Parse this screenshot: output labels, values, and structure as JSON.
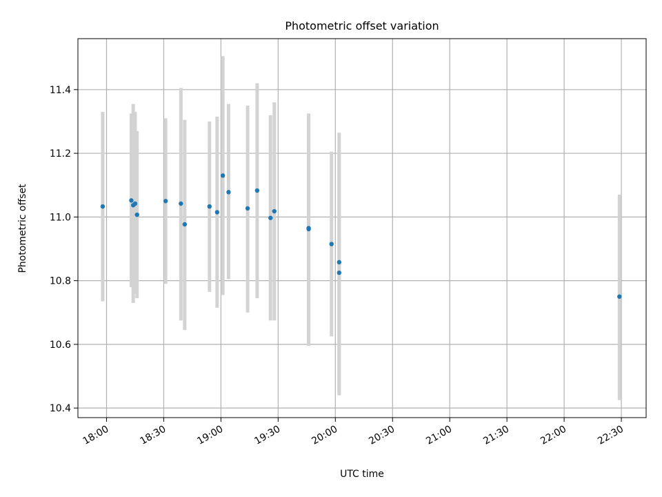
{
  "chart_data": {
    "type": "scatter",
    "title": "Photometric offset variation",
    "xlabel": "UTC time",
    "ylabel": "Photometric offset",
    "x_ticks": [
      "18:00",
      "18:30",
      "19:00",
      "19:30",
      "20:00",
      "20:30",
      "21:00",
      "21:30",
      "22:00",
      "22:30"
    ],
    "y_ticks": [
      "10.4",
      "10.6",
      "10.8",
      "11.0",
      "11.2",
      "11.4"
    ],
    "xlim": [
      "17:45",
      "22:43"
    ],
    "ylim": [
      10.37,
      11.56
    ],
    "grid": true,
    "colors": {
      "point": "#1f77b4",
      "errorbar": "#d3d3d3",
      "grid": "#b0b0b0"
    },
    "points": [
      {
        "x": "17:58",
        "y": 11.033,
        "low": 10.735,
        "high": 11.33
      },
      {
        "x": "18:13",
        "y": 11.052,
        "low": 10.78,
        "high": 11.325
      },
      {
        "x": "18:14",
        "y": 11.037,
        "low": 10.73,
        "high": 11.355
      },
      {
        "x": "18:15",
        "y": 11.042,
        "low": 10.76,
        "high": 11.33
      },
      {
        "x": "18:16",
        "y": 11.007,
        "low": 10.745,
        "high": 11.27
      },
      {
        "x": "18:31",
        "y": 11.05,
        "low": 10.79,
        "high": 11.31
      },
      {
        "x": "18:39",
        "y": 11.042,
        "low": 10.675,
        "high": 11.405
      },
      {
        "x": "18:41",
        "y": 10.977,
        "low": 10.645,
        "high": 11.305
      },
      {
        "x": "18:54",
        "y": 11.033,
        "low": 10.765,
        "high": 11.3
      },
      {
        "x": "18:58",
        "y": 11.015,
        "low": 10.715,
        "high": 11.315
      },
      {
        "x": "19:01",
        "y": 11.13,
        "low": 10.755,
        "high": 11.505
      },
      {
        "x": "19:04",
        "y": 11.078,
        "low": 10.805,
        "high": 11.355
      },
      {
        "x": "19:14",
        "y": 11.027,
        "low": 10.7,
        "high": 11.35
      },
      {
        "x": "19:19",
        "y": 11.083,
        "low": 10.745,
        "high": 11.42
      },
      {
        "x": "19:26",
        "y": 10.997,
        "low": 10.675,
        "high": 11.32
      },
      {
        "x": "19:28",
        "y": 11.018,
        "low": 10.675,
        "high": 11.36
      },
      {
        "x": "19:46",
        "y": 10.962,
        "low": 10.595,
        "high": 11.325
      },
      {
        "x": "19:46",
        "y": 10.965,
        "low": 10.6,
        "high": 11.32
      },
      {
        "x": "19:58",
        "y": 10.915,
        "low": 10.625,
        "high": 11.205
      },
      {
        "x": "20:02",
        "y": 10.858,
        "low": 10.45,
        "high": 11.265
      },
      {
        "x": "20:02",
        "y": 10.825,
        "low": 10.44,
        "high": 11.21
      },
      {
        "x": "22:29",
        "y": 10.75,
        "low": 10.425,
        "high": 11.07
      }
    ]
  }
}
